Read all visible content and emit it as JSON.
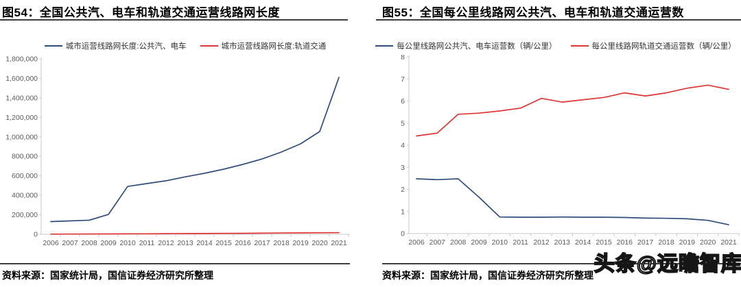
{
  "watermark": {
    "text": "头条@远瞻智库"
  },
  "panels": [
    {
      "title": "图54：全国公共汽、电车和轨道交通运营线路网长度",
      "source": "资料来源：国家统计局，国信证券经济研究所整理"
    },
    {
      "title": "图55：全国每公里线路网公共汽、电车和轨道交通运营数",
      "source": "资料来源：国家统计局，国信证券经济研究所整理"
    }
  ],
  "chart_data": [
    {
      "type": "line",
      "title": "全国公共汽、电车和轨道交通运营线路网长度",
      "categories": [
        "2006",
        "2007",
        "2008",
        "2009",
        "2010",
        "2011",
        "2012",
        "2013",
        "2014",
        "2015",
        "2016",
        "2017",
        "2018",
        "2019",
        "2020",
        "2021"
      ],
      "ylim": [
        0,
        1800000
      ],
      "ytick_step": 200000,
      "ylabel_format": "comma",
      "grid": false,
      "legend_position": "top",
      "axis_color": "#c9c9c9",
      "label_color": "#595959",
      "series": [
        {
          "name": "城市运营线路网长度:公共汽、电车",
          "color": "#2e4d7b",
          "values": [
            130000,
            137000,
            144000,
            203000,
            491000,
            520000,
            549000,
            589000,
            626000,
            668000,
            717000,
            773000,
            844000,
            928000,
            1055000,
            1610000
          ]
        },
        {
          "name": "城市运营线路网长度:轨道交通",
          "color": "#e03434",
          "values": [
            1700,
            2100,
            2600,
            3300,
            4500,
            5200,
            6000,
            6900,
            7900,
            8900,
            10000,
            11200,
            12500,
            13900,
            15300,
            16500
          ]
        }
      ]
    },
    {
      "type": "line",
      "title": "全国每公里线路网公共汽、电车和轨道交通运营数",
      "categories": [
        "2006",
        "2007",
        "2008",
        "2009",
        "2010",
        "2011",
        "2012",
        "2013",
        "2014",
        "2015",
        "2016",
        "2017",
        "2018",
        "2019",
        "2020",
        "2021"
      ],
      "ylim": [
        0,
        8
      ],
      "ytick_step": 1,
      "ylabel_format": "int",
      "grid": false,
      "legend_position": "top",
      "axis_color": "#c9c9c9",
      "label_color": "#595959",
      "series": [
        {
          "name": "每公里线路网公共汽、电车运营数（辆/公里）",
          "color": "#2e4d7b",
          "values": [
            2.48,
            2.44,
            2.48,
            1.65,
            0.75,
            0.74,
            0.74,
            0.75,
            0.74,
            0.74,
            0.73,
            0.7,
            0.69,
            0.67,
            0.6,
            0.4
          ]
        },
        {
          "name": "每公里线路网轨道交通运营数（辆/公里）",
          "color": "#e03434",
          "values": [
            4.42,
            4.55,
            5.4,
            5.45,
            5.55,
            5.68,
            6.12,
            5.95,
            6.06,
            6.16,
            6.37,
            6.23,
            6.37,
            6.58,
            6.72,
            6.53
          ]
        }
      ]
    }
  ]
}
